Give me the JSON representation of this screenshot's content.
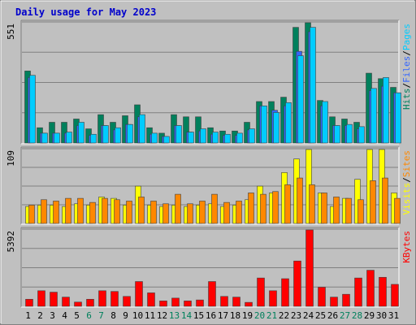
{
  "chart_data": {
    "type": "bar",
    "title": "Daily usage for May 2023",
    "colors": {
      "title": "#0000cc",
      "pages": "#00ccff",
      "files": "#3366ff",
      "hits": "#00805c",
      "visits": "#ffff00",
      "sites": "#ff8800",
      "kbytes": "#ff0000",
      "weekend": "#00805c",
      "weekday": "#000000",
      "panel_bg": "#c0c0c0"
    },
    "categories": [
      "1",
      "2",
      "3",
      "4",
      "5",
      "6",
      "7",
      "8",
      "9",
      "10",
      "11",
      "12",
      "13",
      "14",
      "15",
      "16",
      "17",
      "18",
      "19",
      "20",
      "21",
      "22",
      "23",
      "24",
      "25",
      "26",
      "27",
      "28",
      "29",
      "30",
      "31"
    ],
    "weekend_days": [
      "6",
      "7",
      "13",
      "14",
      "20",
      "21",
      "27",
      "28"
    ],
    "panels": [
      {
        "id": "hits-panel",
        "scale_label": "551",
        "ymax": 551,
        "legend": [
          {
            "text": "Hits",
            "color": "#00805c"
          },
          {
            "text": "/",
            "color": "#000000"
          },
          {
            "text": "Files",
            "color": "#3366ff"
          },
          {
            "text": "/",
            "color": "#000000"
          },
          {
            "text": "Pages",
            "color": "#00ccff"
          }
        ],
        "series": [
          {
            "name": "Hits",
            "color": "#00805c",
            "values": [
              330,
              70,
              95,
              95,
              110,
              65,
              130,
              95,
              125,
              175,
              70,
              45,
              130,
              120,
              120,
              70,
              55,
              55,
              95,
              190,
              190,
              210,
              530,
              551,
              195,
              120,
              110,
              95,
              320,
              295,
              255
            ]
          },
          {
            "name": "Files",
            "color": "#3366ff",
            "values": [
              300,
              45,
              45,
              45,
              80,
              35,
              80,
              60,
              85,
              120,
              40,
              30,
              80,
              50,
              55,
              40,
              35,
              35,
              60,
              170,
              150,
              170,
              420,
              510,
              170,
              80,
              80,
              65,
              240,
              260,
              230
            ]
          },
          {
            "name": "Pages",
            "color": "#00ccff",
            "values": [
              310,
              45,
              45,
              50,
              95,
              40,
              80,
              70,
              85,
              130,
              45,
              30,
              80,
              50,
              65,
              50,
              40,
              45,
              65,
              170,
              140,
              185,
              400,
              530,
              190,
              80,
              85,
              75,
              250,
              300,
              230
            ]
          }
        ]
      },
      {
        "id": "visits-panel",
        "scale_label": "109",
        "ymax": 109,
        "legend": [
          {
            "text": "Visits",
            "color": "#ffff00"
          },
          {
            "text": "/",
            "color": "#000000"
          },
          {
            "text": "Sites",
            "color": "#ff8800"
          }
        ],
        "series": [
          {
            "name": "Visits",
            "color": "#ffff00",
            "values": [
              25,
              27,
              27,
              25,
              29,
              27,
              39,
              37,
              27,
              55,
              27,
              25,
              27,
              25,
              27,
              29,
              25,
              27,
              35,
              55,
              45,
              75,
              95,
              109,
              45,
              25,
              37,
              65,
              109,
              109,
              45
            ]
          },
          {
            "name": "Sites",
            "color": "#ff8800",
            "values": [
              27,
              35,
              33,
              37,
              37,
              31,
              37,
              35,
              33,
              39,
              33,
              29,
              43,
              29,
              33,
              43,
              31,
              33,
              45,
              43,
              47,
              57,
              67,
              57,
              45,
              39,
              37,
              35,
              63,
              67,
              37
            ]
          }
        ]
      },
      {
        "id": "kbytes-panel",
        "scale_label": "5392",
        "ymax": 5392,
        "legend": [
          {
            "text": "KBytes",
            "color": "#ff0000"
          }
        ],
        "series": [
          {
            "name": "KBytes",
            "color": "#ff0000",
            "values": [
              500,
              1100,
              1000,
              650,
              300,
              500,
              1100,
              1050,
              700,
              1750,
              950,
              380,
              580,
              380,
              450,
              1750,
              700,
              650,
              280,
              2000,
              1100,
              1950,
              3200,
              5392,
              1350,
              650,
              850,
              2000,
              2550,
              2050,
              1550
            ]
          }
        ]
      }
    ]
  }
}
